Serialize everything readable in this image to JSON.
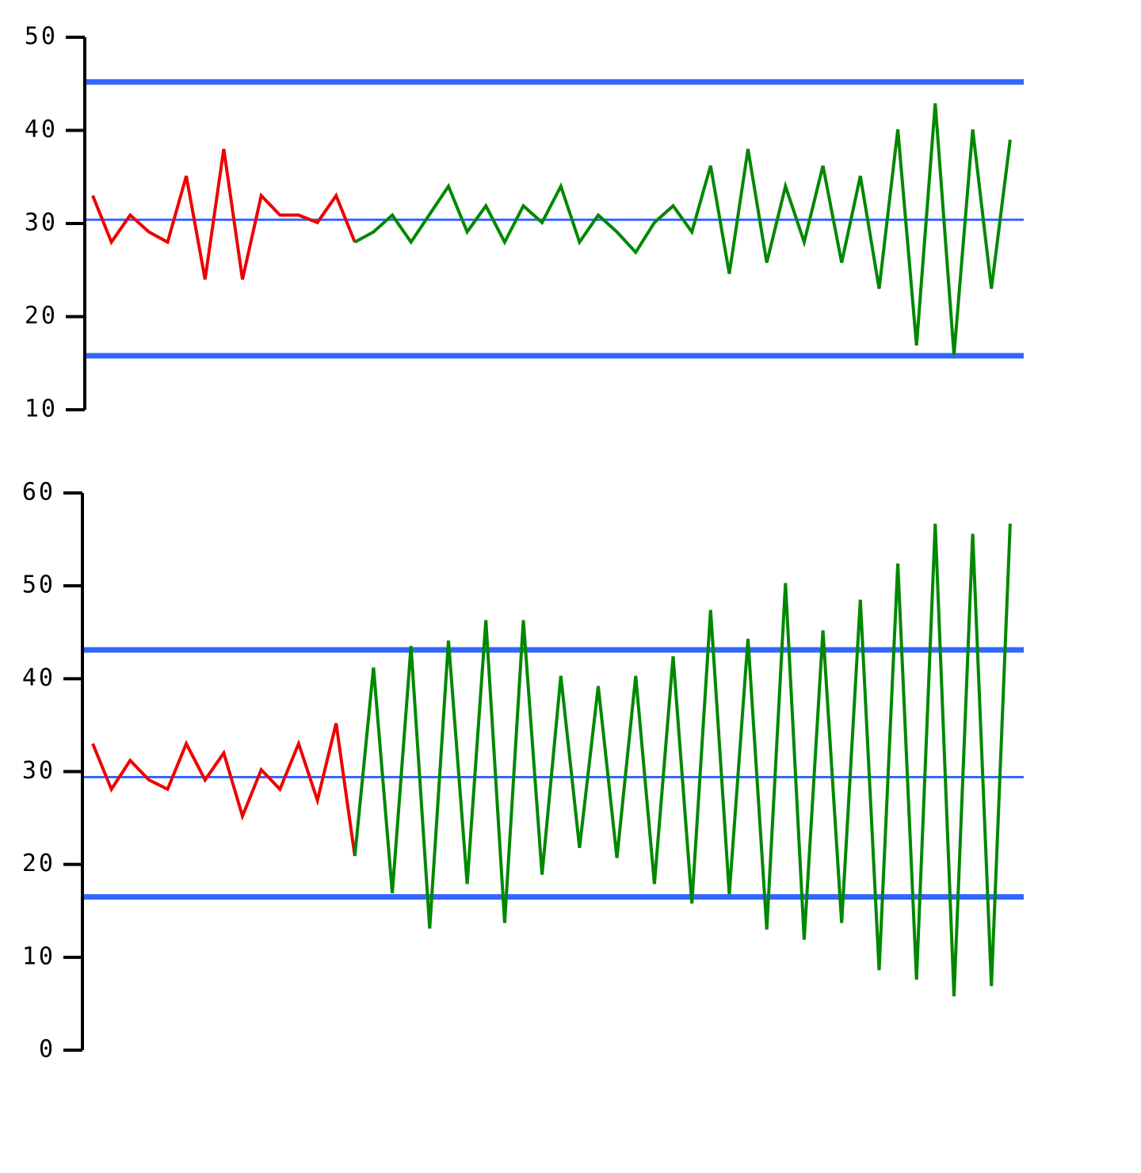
{
  "chart_data": [
    {
      "type": "line",
      "ylim": [
        10,
        50
      ],
      "yticks": [
        10,
        20,
        30,
        40,
        50
      ],
      "control_limits": {
        "upper": 45.2,
        "center": 30.4,
        "lower": 15.8,
        "color": "#3366ff"
      },
      "series": [
        {
          "color": "#ee0000",
          "values": [
            33,
            28,
            30.9,
            29.1,
            28,
            35.1,
            24,
            38,
            24,
            33,
            30.9,
            30.9,
            30.1,
            33,
            28,
            null,
            null,
            null,
            null,
            null,
            null,
            null,
            null,
            null,
            null,
            null,
            null,
            null,
            null,
            null,
            null,
            null,
            null,
            null,
            null,
            null,
            null,
            null,
            null,
            null,
            null,
            null,
            null,
            null,
            null,
            null,
            null,
            null,
            null,
            null
          ]
        },
        {
          "color": "#008800",
          "values": [
            null,
            null,
            null,
            null,
            null,
            null,
            null,
            null,
            null,
            null,
            null,
            null,
            null,
            null,
            28,
            29.1,
            30.9,
            28,
            31,
            34,
            29.1,
            31.9,
            28,
            31.9,
            30.1,
            34,
            28,
            30.9,
            29.1,
            26.9,
            30.1,
            31.9,
            29.1,
            36.2,
            24.6,
            38,
            25.8,
            34,
            28,
            36.2,
            25.8,
            35.1,
            23,
            40.1,
            16.9,
            42.9,
            15.9,
            40.1,
            23,
            39
          ]
        }
      ]
    },
    {
      "type": "line",
      "ylim": [
        0,
        60
      ],
      "yticks": [
        0,
        10,
        20,
        30,
        40,
        50,
        60
      ],
      "control_limits": {
        "upper": 43.1,
        "center": 29.4,
        "lower": 16.5,
        "color": "#3366ff"
      },
      "series": [
        {
          "color": "#ee0000",
          "values": [
            33,
            28.1,
            31.2,
            29.1,
            28.1,
            33,
            29.1,
            32,
            25.2,
            30.2,
            28.1,
            33,
            26.9,
            35.2,
            20.9,
            null,
            null,
            null,
            null,
            null,
            null,
            null,
            null,
            null,
            null,
            null,
            null,
            null,
            null,
            null,
            null,
            null,
            null,
            null,
            null,
            null,
            null,
            null,
            null,
            null,
            null,
            null,
            null,
            null,
            null,
            null,
            null,
            null,
            null,
            null
          ]
        },
        {
          "color": "#008800",
          "values": [
            null,
            null,
            null,
            null,
            null,
            null,
            null,
            null,
            null,
            null,
            null,
            null,
            null,
            null,
            20.9,
            41.2,
            16.9,
            43.5,
            13.1,
            44.1,
            17.9,
            46.3,
            13.7,
            46.3,
            18.9,
            40.3,
            21.8,
            39.2,
            20.7,
            40.3,
            17.9,
            42.4,
            15.8,
            47.4,
            16.8,
            44.3,
            13,
            50.3,
            11.9,
            45.2,
            13.7,
            48.5,
            8.6,
            52.4,
            7.6,
            56.7,
            5.8,
            55.6,
            6.9,
            56.7
          ]
        }
      ]
    }
  ]
}
